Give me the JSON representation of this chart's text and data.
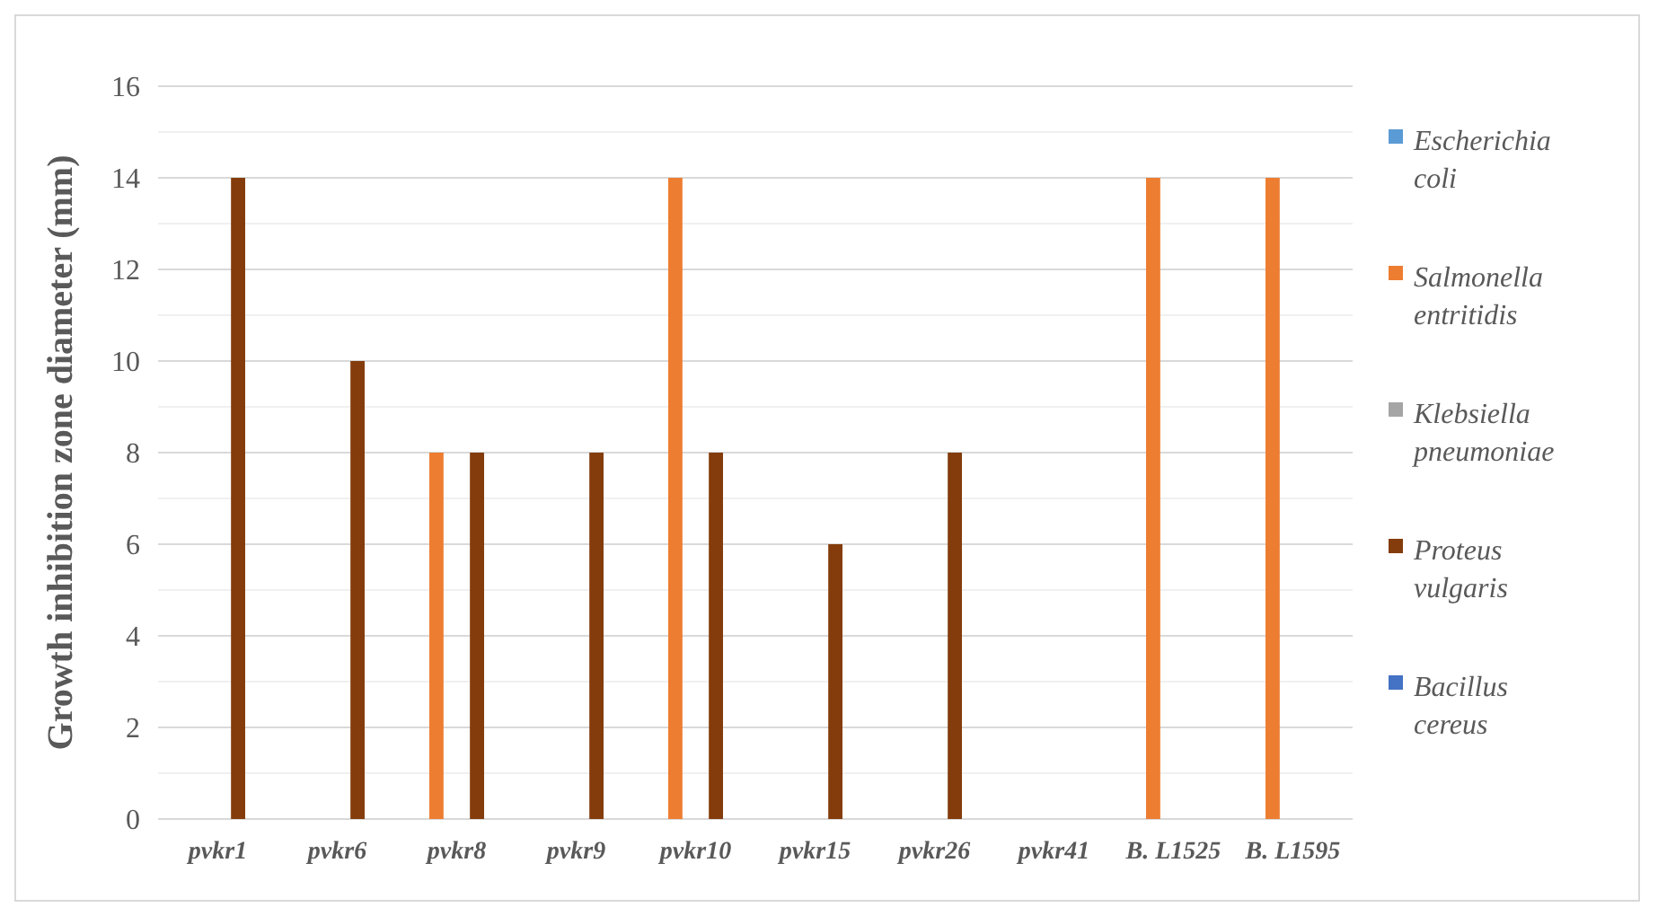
{
  "chart_data": {
    "type": "bar",
    "ylabel": "Growth inhibition zone diameter (mm)",
    "categories": [
      "pvkr1",
      "pvkr6",
      "pvkr8",
      "pvkr9",
      "pvkr10",
      "pvkr15",
      "pvkr26",
      "pvkr41",
      "B. L1525",
      "B. L1595"
    ],
    "series": [
      {
        "name": "Escherichia coli",
        "color": "#5b9bd5",
        "values": [
          0,
          0,
          0,
          0,
          0,
          0,
          0,
          0,
          0,
          0
        ]
      },
      {
        "name": "Salmonella entritidis",
        "color": "#ed7d31",
        "values": [
          0,
          0,
          8,
          0,
          14,
          0,
          0,
          0,
          14,
          14
        ]
      },
      {
        "name": "Klebsiella pneumoniae",
        "color": "#a5a5a5",
        "values": [
          0,
          0,
          0,
          0,
          0,
          0,
          0,
          0,
          0,
          0
        ]
      },
      {
        "name": "Proteus vulgaris",
        "color": "#843c0c",
        "values": [
          14,
          10,
          8,
          8,
          8,
          6,
          8,
          0,
          0,
          0
        ]
      },
      {
        "name": "Bacillus cereus",
        "color": "#4472c4",
        "values": [
          0,
          0,
          0,
          0,
          0,
          0,
          0,
          0,
          0,
          0
        ]
      }
    ],
    "ylim": [
      0,
      16
    ],
    "yticks": [
      0,
      {
        "value": 1,
        "label": null
      },
      2,
      {
        "value": 3,
        "label": null
      },
      4,
      {
        "value": 5,
        "label": null
      },
      6,
      {
        "value": 7,
        "label": null
      },
      8,
      {
        "value": 9,
        "label": null
      },
      10,
      {
        "value": 11,
        "label": null
      },
      12,
      {
        "value": 13,
        "label": null
      },
      14,
      {
        "value": 15,
        "label": null
      },
      16
    ],
    "grid": "y",
    "legend": "right"
  }
}
